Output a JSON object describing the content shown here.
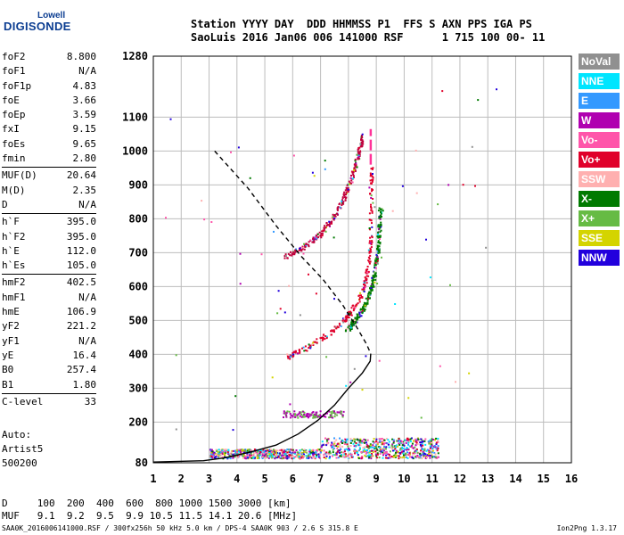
{
  "logo": {
    "line1": "Lowell",
    "line2": "DIGISONDE"
  },
  "header": {
    "line1": "Station YYYY DAY  DDD HHMMSS P1  FFS S AXN PPS IGA PS",
    "line2": "SaoLuis 2016 Jan06 006 141000 RSF      1 715 100 00- 11"
  },
  "params": [
    [
      {
        "k": "foF2",
        "v": "8.800"
      },
      {
        "k": "foF1",
        "v": "N/A"
      },
      {
        "k": "foF1p",
        "v": "4.83"
      },
      {
        "k": "foE",
        "v": "3.66"
      },
      {
        "k": "foEp",
        "v": "3.59"
      },
      {
        "k": "fxI",
        "v": "9.15"
      },
      {
        "k": "foEs",
        "v": "9.65"
      },
      {
        "k": "fmin",
        "v": "2.80"
      }
    ],
    [
      {
        "k": "MUF(D)",
        "v": "20.64"
      },
      {
        "k": "M(D)",
        "v": "2.35"
      },
      {
        "k": "D",
        "v": "N/A"
      }
    ],
    [
      {
        "k": "h`F",
        "v": "395.0"
      },
      {
        "k": "h`F2",
        "v": "395.0"
      },
      {
        "k": "h`E",
        "v": "112.0"
      },
      {
        "k": "h`Es",
        "v": "105.0"
      }
    ],
    [
      {
        "k": "hmF2",
        "v": "402.5"
      },
      {
        "k": "hmF1",
        "v": "N/A"
      },
      {
        "k": "hmE",
        "v": "106.9"
      },
      {
        "k": "yF2",
        "v": "221.2"
      },
      {
        "k": "yF1",
        "v": "N/A"
      },
      {
        "k": "yE",
        "v": "16.4"
      },
      {
        "k": "B0",
        "v": "257.4"
      },
      {
        "k": "B1",
        "v": "1.80"
      }
    ],
    [
      {
        "k": "C-level",
        "v": "33"
      }
    ]
  ],
  "auto": {
    "l1": "Auto:",
    "l2": "Artist5",
    "l3": "500200"
  },
  "dmuf": {
    "d_line": "D     100  200  400  600  800 1000 1500 3000 [km]",
    "muf_line": "MUF   9.1  9.2  9.5  9.9 10.5 11.5 14.1 20.6 [MHz]"
  },
  "footer": "SAA0K_2016006141000.RSF / 300fx256h 50 kHz 5.0 km / DPS-4 SAA0K 903 / 2.6 S 315.8 E",
  "version": "Ion2Png 1.3.17",
  "legend": [
    {
      "label": "NoVal",
      "color": "#909090"
    },
    {
      "label": "NNE",
      "color": "#00e5ff"
    },
    {
      "label": "E",
      "color": "#3399ff"
    },
    {
      "label": "W",
      "color": "#b000b0"
    },
    {
      "label": "Vo-",
      "color": "#ff55aa"
    },
    {
      "label": "Vo+",
      "color": "#e0002a"
    },
    {
      "label": "SSW",
      "color": "#ffb0b0"
    },
    {
      "label": "X-",
      "color": "#007a00"
    },
    {
      "label": "X+",
      "color": "#66bb44"
    },
    {
      "label": "SSE",
      "color": "#d4d400"
    },
    {
      "label": "NNW",
      "color": "#2200dd"
    }
  ],
  "chart_data": {
    "type": "scatter",
    "title": "",
    "xlabel": "",
    "ylabel": "",
    "xlim": [
      1,
      16
    ],
    "ylim": [
      80,
      1280
    ],
    "xticks": [
      "1",
      "2",
      "3",
      "4",
      "5",
      "6",
      "7",
      "8",
      "9",
      "10",
      "11",
      "12",
      "13",
      "14",
      "15",
      "16"
    ],
    "yticks": [
      {
        "v": 80,
        "label": "80"
      },
      {
        "v": 200,
        "label": "200"
      },
      {
        "v": 300,
        "label": "300"
      },
      {
        "v": 400,
        "label": "400"
      },
      {
        "v": 500,
        "label": "500"
      },
      {
        "v": 600,
        "label": "600"
      },
      {
        "v": 700,
        "label": "700"
      },
      {
        "v": 800,
        "label": "800"
      },
      {
        "v": 900,
        "label": "900"
      },
      {
        "v": 1000,
        "label": "1000"
      },
      {
        "v": 1100,
        "label": "1100"
      },
      {
        "v": 1280,
        "label": "1280"
      }
    ],
    "grid": true,
    "profile_solid": [
      [
        1.0,
        82
      ],
      [
        2.8,
        86
      ],
      [
        3.6,
        95
      ],
      [
        4.5,
        112
      ],
      [
        5.4,
        132
      ],
      [
        6.2,
        165
      ],
      [
        6.9,
        205
      ],
      [
        7.5,
        250
      ],
      [
        8.0,
        300
      ],
      [
        8.5,
        345
      ],
      [
        8.78,
        380
      ],
      [
        8.8,
        402
      ]
    ],
    "profile_dashed": [
      [
        3.2,
        1000
      ],
      [
        4.4,
        890
      ],
      [
        5.4,
        780
      ],
      [
        6.3,
        690
      ],
      [
        7.1,
        620
      ],
      [
        7.8,
        545
      ],
      [
        8.3,
        480
      ],
      [
        8.65,
        430
      ],
      [
        8.8,
        402
      ]
    ],
    "foF2_marker": {
      "f": 8.8,
      "h_low": 960,
      "h_high": 1065
    },
    "traces": [
      {
        "name": "o-trace F2",
        "color": "#e0002a",
        "points": [
          [
            5.8,
            395
          ],
          [
            6.2,
            410
          ],
          [
            6.6,
            425
          ],
          [
            7.0,
            448
          ],
          [
            7.4,
            470
          ],
          [
            7.8,
            500
          ],
          [
            8.1,
            530
          ],
          [
            8.4,
            570
          ],
          [
            8.6,
            620
          ],
          [
            8.72,
            680
          ],
          [
            8.78,
            760
          ],
          [
            8.8,
            860
          ],
          [
            8.8,
            960
          ]
        ]
      },
      {
        "name": "x-trace F2",
        "color": "#007a00",
        "points": [
          [
            7.9,
            470
          ],
          [
            8.3,
            510
          ],
          [
            8.6,
            550
          ],
          [
            8.85,
            610
          ],
          [
            9.0,
            680
          ],
          [
            9.08,
            760
          ],
          [
            9.12,
            830
          ]
        ]
      },
      {
        "name": "second hop o",
        "color": "#c0003c",
        "points": [
          [
            5.7,
            690
          ],
          [
            6.3,
            715
          ],
          [
            6.9,
            750
          ],
          [
            7.4,
            800
          ],
          [
            7.8,
            860
          ],
          [
            8.1,
            920
          ],
          [
            8.3,
            980
          ],
          [
            8.5,
            1050
          ]
        ]
      },
      {
        "name": "E/Es",
        "color": "#b000b0",
        "points": [
          [
            3.0,
            108
          ],
          [
            4.0,
            112
          ],
          [
            5.0,
            115
          ],
          [
            6.0,
            118
          ],
          [
            7.0,
            120
          ],
          [
            8.0,
            122
          ],
          [
            9.0,
            123
          ]
        ]
      }
    ]
  }
}
